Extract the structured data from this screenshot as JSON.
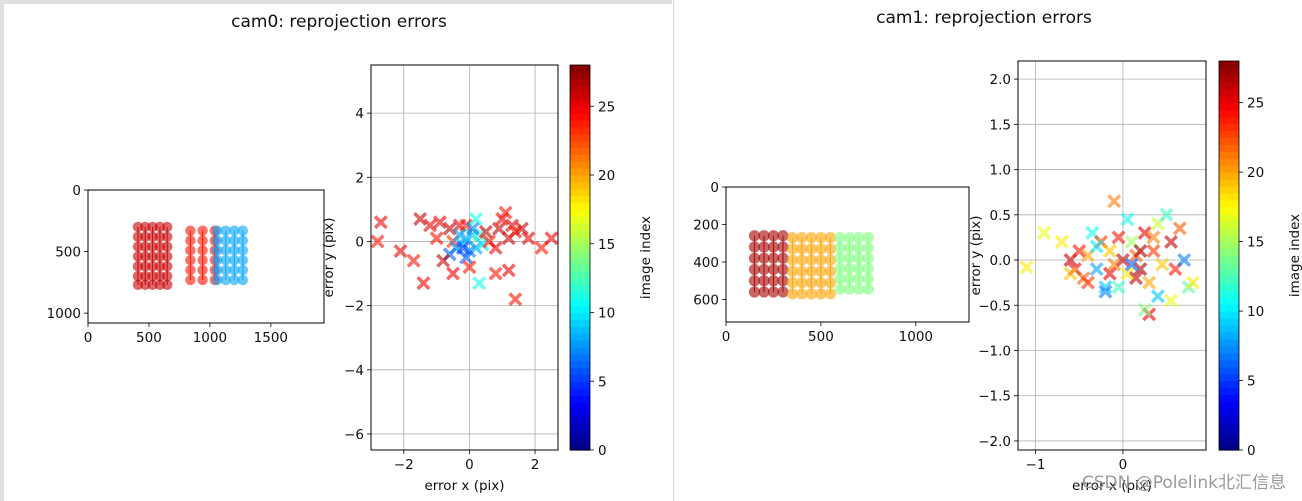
{
  "figures": [
    {
      "title": "cam0: reprojection errors"
    },
    {
      "title": "cam1: reprojection errors"
    }
  ],
  "watermark": "CSDN @Polelink北汇信息",
  "colors": {
    "jet": [
      "#00007f",
      "#0000ff",
      "#007fff",
      "#00ffff",
      "#7fff7f",
      "#ffff00",
      "#ff7f00",
      "#ff0000",
      "#7f0000"
    ]
  },
  "chart_data": [
    {
      "id": "cam0-image-points",
      "type": "scatter",
      "xlabel": "",
      "ylabel": "",
      "xlim": [
        0,
        1936
      ],
      "ylim": [
        1080,
        0
      ],
      "xticks": [
        0,
        500,
        1000,
        1500
      ],
      "yticks": [
        0,
        500,
        1000
      ],
      "series": [
        {
          "image_index": 26,
          "columns_x": [
            410,
            470,
            530,
            590,
            650
          ],
          "rows_y": [
            300,
            380,
            460,
            540,
            620,
            700,
            770
          ]
        },
        {
          "image_index": 24,
          "columns_x": [
            840,
            940,
            1040
          ],
          "rows_y": [
            330,
            410,
            490,
            570,
            650,
            730
          ]
        },
        {
          "image_index": 8,
          "columns_x": [
            1060,
            1130,
            1200,
            1270
          ],
          "rows_y": [
            330,
            410,
            490,
            570,
            650,
            730
          ]
        }
      ]
    },
    {
      "id": "cam0-errors",
      "type": "scatter",
      "xlabel": "error x (pix)",
      "ylabel": "error y (pix)",
      "xlim": [
        -3,
        2.7
      ],
      "ylim": [
        -6.5,
        5.5
      ],
      "xticks": [
        -2,
        0,
        2
      ],
      "yticks": [
        -6,
        -4,
        -2,
        0,
        2,
        4
      ],
      "colorbar": {
        "label": "image index",
        "ticks": [
          0,
          5,
          10,
          15,
          20,
          25
        ],
        "range": [
          0,
          28
        ]
      },
      "points": [
        [
          -2.7,
          0.6,
          25
        ],
        [
          -2.8,
          0.0,
          24
        ],
        [
          -2.1,
          -0.3,
          25
        ],
        [
          -1.7,
          -0.6,
          24
        ],
        [
          -1.4,
          -1.3,
          25
        ],
        [
          -1.5,
          0.7,
          26
        ],
        [
          -1.2,
          0.5,
          25
        ],
        [
          -1.0,
          0.1,
          24
        ],
        [
          -0.9,
          0.6,
          25
        ],
        [
          -0.6,
          0.4,
          26
        ],
        [
          -0.5,
          0.0,
          23
        ],
        [
          -0.3,
          0.5,
          25
        ],
        [
          -0.1,
          0.5,
          24
        ],
        [
          -0.6,
          -0.4,
          6
        ],
        [
          -0.4,
          -0.2,
          7
        ],
        [
          -0.3,
          0.2,
          8
        ],
        [
          -0.2,
          -0.1,
          9
        ],
        [
          -0.1,
          0.1,
          8
        ],
        [
          0.0,
          -0.3,
          7
        ],
        [
          0.1,
          0.2,
          9
        ],
        [
          0.2,
          -0.2,
          8
        ],
        [
          0.2,
          0.7,
          11
        ],
        [
          0.3,
          0.2,
          12
        ],
        [
          0.4,
          -0.1,
          10
        ],
        [
          -0.1,
          -0.5,
          6
        ],
        [
          0.1,
          0.4,
          7
        ],
        [
          -0.2,
          -0.2,
          5
        ],
        [
          0.5,
          0.3,
          26
        ],
        [
          0.6,
          0.0,
          24
        ],
        [
          0.8,
          -0.2,
          25
        ],
        [
          0.9,
          0.4,
          26
        ],
        [
          1.0,
          0.7,
          25
        ],
        [
          1.1,
          0.9,
          24
        ],
        [
          1.2,
          0.1,
          26
        ],
        [
          1.3,
          0.5,
          25
        ],
        [
          1.4,
          0.3,
          24
        ],
        [
          1.6,
          0.4,
          26
        ],
        [
          1.8,
          0.1,
          25
        ],
        [
          2.2,
          -0.2,
          24
        ],
        [
          2.5,
          0.1,
          25
        ],
        [
          0.8,
          -1.0,
          24
        ],
        [
          1.2,
          -0.9,
          25
        ],
        [
          1.4,
          -1.8,
          24
        ],
        [
          0.3,
          -1.3,
          11
        ],
        [
          -0.8,
          -0.6,
          26
        ],
        [
          0.0,
          -0.8,
          24
        ],
        [
          -0.5,
          -1.0,
          25
        ]
      ]
    },
    {
      "id": "cam1-image-points",
      "type": "scatter",
      "xlabel": "",
      "ylabel": "",
      "xlim": [
        0,
        1280
      ],
      "ylim": [
        720,
        0
      ],
      "xticks": [
        0,
        500,
        1000
      ],
      "yticks": [
        0,
        200,
        400,
        600
      ],
      "series": [
        {
          "image_index": 27,
          "columns_x": [
            150,
            200,
            250,
            300
          ],
          "rows_y": [
            260,
            320,
            380,
            440,
            500,
            560
          ]
        },
        {
          "image_index": 20,
          "columns_x": [
            350,
            400,
            450,
            500,
            550
          ],
          "rows_y": [
            270,
            330,
            390,
            450,
            510,
            570
          ]
        },
        {
          "image_index": 14,
          "columns_x": [
            600,
            650,
            700,
            750
          ],
          "rows_y": [
            270,
            325,
            380,
            435,
            490,
            545
          ]
        }
      ]
    },
    {
      "id": "cam1-errors",
      "type": "scatter",
      "xlabel": "error x (pix)",
      "ylabel": "error y (pix)",
      "xlim": [
        -1.2,
        0.95
      ],
      "ylim": [
        -2.1,
        2.2
      ],
      "xticks": [
        -1,
        0
      ],
      "yticks": [
        -2.0,
        -1.5,
        -1.0,
        -0.5,
        0.0,
        0.5,
        1.0,
        1.5,
        2.0
      ],
      "colorbar": {
        "label": "image index",
        "ticks": [
          0,
          5,
          10,
          15,
          20,
          25
        ],
        "range": [
          0,
          28
        ]
      },
      "points": [
        [
          -1.1,
          -0.08,
          18
        ],
        [
          -0.9,
          0.3,
          17
        ],
        [
          -0.7,
          0.2,
          18
        ],
        [
          -0.6,
          0.0,
          26
        ],
        [
          -0.55,
          -0.1,
          25
        ],
        [
          -0.5,
          0.1,
          24
        ],
        [
          -0.45,
          -0.2,
          22
        ],
        [
          -0.4,
          0.05,
          20
        ],
        [
          -0.35,
          0.3,
          11
        ],
        [
          -0.3,
          -0.1,
          8
        ],
        [
          -0.25,
          0.2,
          23
        ],
        [
          -0.2,
          -0.3,
          9
        ],
        [
          -0.15,
          0.1,
          19
        ],
        [
          -0.1,
          -0.05,
          21
        ],
        [
          -0.05,
          0.25,
          24
        ],
        [
          0.0,
          0.0,
          26
        ],
        [
          0.05,
          -0.15,
          18
        ],
        [
          0.1,
          0.2,
          15
        ],
        [
          0.15,
          0.05,
          22
        ],
        [
          0.2,
          -0.1,
          27
        ],
        [
          0.25,
          0.3,
          25
        ],
        [
          0.3,
          -0.25,
          20
        ],
        [
          0.35,
          0.1,
          23
        ],
        [
          0.4,
          0.4,
          16
        ],
        [
          0.45,
          -0.05,
          19
        ],
        [
          0.5,
          0.5,
          12
        ],
        [
          0.55,
          0.2,
          26
        ],
        [
          0.6,
          -0.1,
          24
        ],
        [
          0.65,
          0.35,
          22
        ],
        [
          0.7,
          0.0,
          7
        ],
        [
          0.75,
          -0.3,
          13
        ],
        [
          0.8,
          -0.25,
          18
        ],
        [
          -0.1,
          0.65,
          21
        ],
        [
          -0.2,
          -0.35,
          7
        ],
        [
          0.05,
          0.45,
          11
        ],
        [
          0.3,
          -0.6,
          25
        ],
        [
          0.25,
          -0.55,
          14
        ],
        [
          0.4,
          -0.4,
          9
        ],
        [
          -0.05,
          -0.3,
          12
        ],
        [
          0.1,
          -0.05,
          6
        ],
        [
          -0.3,
          0.15,
          10
        ],
        [
          -0.4,
          -0.25,
          23
        ],
        [
          0.2,
          0.1,
          27
        ],
        [
          0.15,
          -0.2,
          26
        ],
        [
          -0.15,
          -0.15,
          25
        ],
        [
          0.35,
          0.25,
          21
        ],
        [
          0.55,
          -0.45,
          17
        ],
        [
          -0.6,
          -0.15,
          19
        ]
      ]
    }
  ]
}
